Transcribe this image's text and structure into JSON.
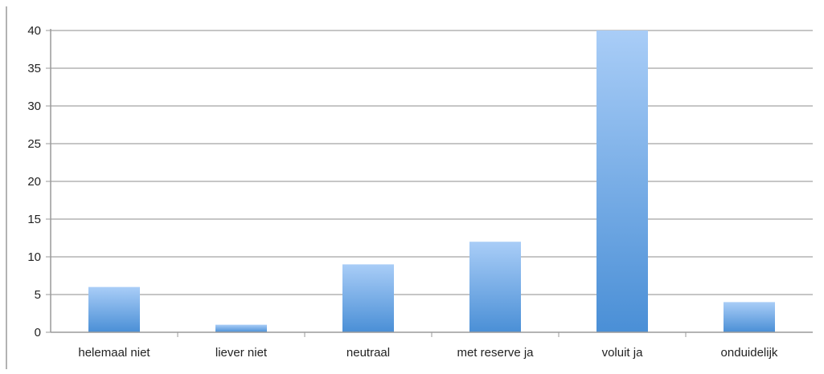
{
  "chart_data": {
    "type": "bar",
    "title": "",
    "xlabel": "",
    "ylabel": "",
    "categories": [
      "helemaal niet",
      "liever niet",
      "neutraal",
      "met reserve ja",
      "voluit ja",
      "onduidelijk"
    ],
    "values": [
      6,
      1,
      9,
      12,
      40,
      4
    ],
    "ylim": [
      0,
      40
    ],
    "yticks": [
      0,
      5,
      10,
      15,
      20,
      25,
      30,
      35,
      40
    ],
    "ytick_labels": [
      "0",
      "5",
      "10",
      "15",
      "20",
      "25",
      "30",
      "35",
      "40"
    ],
    "grid": true,
    "legend": "none",
    "colors": {
      "bar_top": "#a9cdf7",
      "bar_bottom": "#4a8fd6",
      "gridline": "#b3b3b3",
      "axis": "#9a9a9a",
      "text": "#222222"
    }
  }
}
